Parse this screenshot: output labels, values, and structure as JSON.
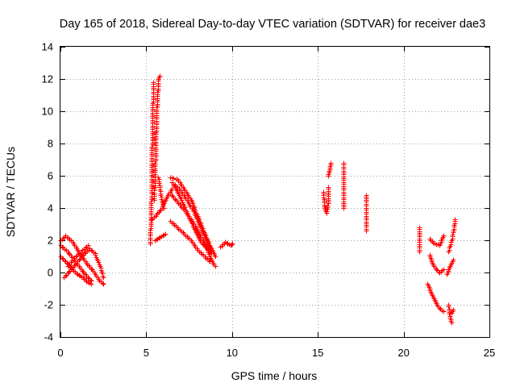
{
  "chart_data": {
    "type": "scatter",
    "title": "Day 165 of 2018, Sidereal Day-to-day VTEC variation (SDTVAR) for receiver dae3",
    "xlabel": "GPS time / hours",
    "ylabel": "SDTVAR / TECUs",
    "xlim": [
      0,
      25
    ],
    "ylim": [
      -4,
      14
    ],
    "x_ticks": [
      0,
      5,
      10,
      15,
      20,
      25
    ],
    "y_ticks": [
      -4,
      -2,
      0,
      2,
      4,
      6,
      8,
      10,
      12,
      14
    ],
    "x_tick_labels": [
      "0",
      "5",
      "10",
      "15",
      "20",
      "25"
    ],
    "y_tick_labels": [
      "-4",
      "-2",
      "0",
      "2",
      "4",
      "6",
      "8",
      "10",
      "12",
      "14"
    ],
    "grid": true,
    "marker": "+",
    "color": "#ff0000",
    "series": [
      {
        "name": "SDTVAR",
        "segments": [
          [
            [
              0.0,
              2.0
            ],
            [
              0.3,
              2.3
            ],
            [
              0.7,
              1.9
            ],
            [
              1.1,
              1.2
            ],
            [
              1.5,
              0.6
            ],
            [
              1.9,
              0.1
            ],
            [
              2.2,
              -0.4
            ],
            [
              2.5,
              -0.7
            ]
          ],
          [
            [
              0.0,
              1.7
            ],
            [
              0.4,
              1.3
            ],
            [
              0.8,
              0.8
            ],
            [
              1.2,
              0.2
            ],
            [
              1.5,
              -0.2
            ],
            [
              1.8,
              -0.5
            ]
          ],
          [
            [
              0.0,
              1.0
            ],
            [
              0.3,
              0.7
            ],
            [
              0.7,
              0.2
            ],
            [
              1.0,
              -0.1
            ],
            [
              1.3,
              -0.3
            ],
            [
              1.6,
              -0.6
            ],
            [
              1.8,
              -0.7
            ]
          ],
          [
            [
              0.2,
              -0.3
            ],
            [
              0.6,
              0.2
            ],
            [
              1.0,
              0.7
            ],
            [
              1.4,
              1.2
            ],
            [
              1.7,
              1.5
            ],
            [
              2.0,
              1.2
            ],
            [
              2.3,
              0.4
            ],
            [
              2.5,
              -0.3
            ]
          ],
          [
            [
              0.4,
              0.4
            ],
            [
              0.8,
              0.9
            ],
            [
              1.2,
              1.3
            ],
            [
              1.6,
              1.7
            ]
          ],
          [
            [
              5.2,
              1.8
            ],
            [
              5.25,
              3.0
            ],
            [
              5.3,
              5.0
            ],
            [
              5.32,
              7.0
            ],
            [
              5.35,
              9.0
            ],
            [
              5.38,
              10.5
            ],
            [
              5.4,
              11.8
            ]
          ],
          [
            [
              5.45,
              4.5
            ],
            [
              5.5,
              6.0
            ],
            [
              5.55,
              8.0
            ],
            [
              5.6,
              10.0
            ],
            [
              5.7,
              12.0
            ],
            [
              5.8,
              12.2
            ]
          ],
          [
            [
              5.3,
              3.3
            ],
            [
              5.6,
              3.6
            ],
            [
              5.9,
              4.0
            ],
            [
              6.2,
              4.7
            ],
            [
              6.5,
              5.2
            ]
          ],
          [
            [
              5.5,
              2.0
            ],
            [
              5.8,
              2.2
            ],
            [
              6.1,
              2.4
            ]
          ],
          [
            [
              5.7,
              5.9
            ],
            [
              5.85,
              4.8
            ],
            [
              6.0,
              4.0
            ]
          ],
          [
            [
              6.4,
              5.9
            ],
            [
              6.8,
              5.8
            ],
            [
              7.2,
              5.2
            ],
            [
              7.6,
              4.5
            ],
            [
              8.0,
              3.5
            ],
            [
              8.4,
              2.4
            ],
            [
              8.8,
              1.5
            ],
            [
              9.0,
              1.0
            ]
          ],
          [
            [
              6.5,
              5.6
            ],
            [
              6.9,
              5.2
            ],
            [
              7.3,
              4.6
            ],
            [
              7.7,
              3.9
            ],
            [
              8.1,
              3.0
            ],
            [
              8.5,
              2.0
            ],
            [
              8.8,
              1.2
            ]
          ],
          [
            [
              6.4,
              4.9
            ],
            [
              6.8,
              4.4
            ],
            [
              7.2,
              3.9
            ],
            [
              7.6,
              3.3
            ],
            [
              8.0,
              2.6
            ],
            [
              8.4,
              1.8
            ],
            [
              8.8,
              0.8
            ],
            [
              9.0,
              0.4
            ]
          ],
          [
            [
              6.4,
              3.2
            ],
            [
              6.8,
              2.8
            ],
            [
              7.2,
              2.4
            ],
            [
              7.6,
              2.0
            ],
            [
              8.0,
              1.4
            ],
            [
              8.4,
              1.0
            ],
            [
              8.7,
              0.7
            ]
          ],
          [
            [
              6.6,
              5.4
            ],
            [
              7.0,
              4.6
            ],
            [
              7.4,
              3.7
            ],
            [
              7.8,
              2.7
            ],
            [
              8.2,
              1.9
            ],
            [
              8.6,
              1.4
            ]
          ],
          [
            [
              9.3,
              1.6
            ],
            [
              9.6,
              1.9
            ],
            [
              9.9,
              1.7
            ],
            [
              10.0,
              1.8
            ]
          ],
          [
            [
              15.3,
              5.0
            ],
            [
              15.4,
              4.0
            ],
            [
              15.5,
              3.7
            ],
            [
              15.6,
              4.4
            ],
            [
              15.6,
              5.3
            ]
          ],
          [
            [
              15.6,
              6.0
            ],
            [
              15.7,
              6.5
            ],
            [
              15.75,
              6.8
            ]
          ],
          [
            [
              16.5,
              6.8
            ],
            [
              16.5,
              4.3
            ],
            [
              16.5,
              4.0
            ]
          ],
          [
            [
              17.8,
              4.8
            ],
            [
              17.8,
              4.4
            ],
            [
              17.8,
              3.4
            ],
            [
              17.8,
              2.6
            ]
          ],
          [
            [
              20.9,
              2.8
            ],
            [
              20.9,
              2.0
            ],
            [
              20.9,
              1.3
            ]
          ],
          [
            [
              21.5,
              2.1
            ],
            [
              21.8,
              1.8
            ],
            [
              22.1,
              1.7
            ],
            [
              22.3,
              2.3
            ]
          ],
          [
            [
              21.5,
              1.1
            ],
            [
              21.7,
              0.5
            ],
            [
              21.9,
              0.2
            ],
            [
              22.1,
              0.0
            ],
            [
              22.3,
              0.2
            ]
          ],
          [
            [
              21.4,
              -0.7
            ],
            [
              21.6,
              -1.3
            ],
            [
              21.8,
              -1.7
            ],
            [
              22.0,
              -2.1
            ],
            [
              22.3,
              -2.4
            ]
          ],
          [
            [
              22.6,
              -2.0
            ],
            [
              22.7,
              -2.8
            ],
            [
              22.8,
              -3.1
            ]
          ],
          [
            [
              22.8,
              -2.5
            ],
            [
              22.9,
              -2.3
            ]
          ],
          [
            [
              22.5,
              -0.1
            ],
            [
              22.7,
              0.4
            ],
            [
              22.9,
              0.8
            ]
          ],
          [
            [
              22.6,
              1.3
            ],
            [
              22.8,
              2.0
            ],
            [
              22.9,
              2.6
            ],
            [
              23.0,
              3.3
            ]
          ]
        ]
      }
    ]
  }
}
